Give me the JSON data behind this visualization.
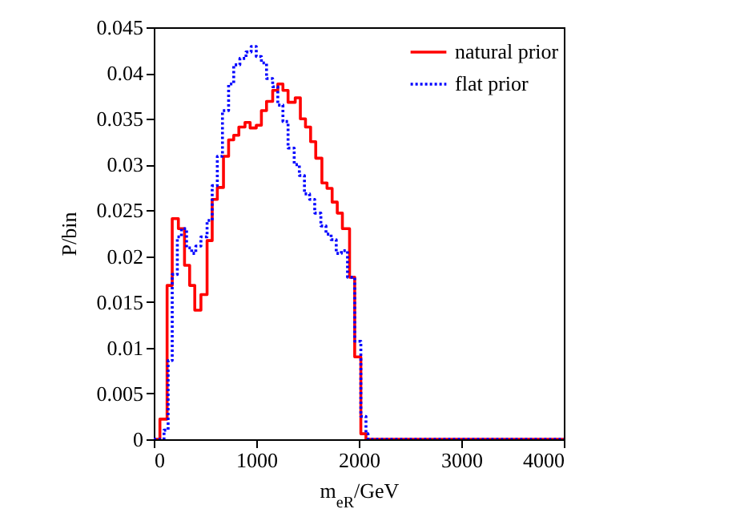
{
  "chart_data": {
    "type": "step",
    "xlabel": "m$_{eR}$/GeV",
    "ylabel": "P/bin",
    "xlim": [
      0,
      4000
    ],
    "xticks": [
      0,
      1000,
      2000,
      3000,
      4000
    ],
    "ylim": [
      0,
      0.045
    ],
    "yticks": [
      0,
      0.005,
      0.01,
      0.015,
      0.02,
      0.025,
      0.03,
      0.035,
      0.04,
      0.045
    ],
    "grid": false,
    "legend": "top right",
    "series": [
      {
        "name": "natural prior",
        "color": "#ff0000",
        "line_style": "solid",
        "x": [
          0,
          60,
          130,
          180,
          240,
          300,
          350,
          400,
          460,
          520,
          570,
          620,
          680,
          730,
          780,
          830,
          890,
          940,
          1000,
          1050,
          1100,
          1160,
          1210,
          1260,
          1310,
          1380,
          1430,
          1480,
          1530,
          1580,
          1640,
          1690,
          1740,
          1790,
          1840,
          1910,
          1960,
          2020,
          2070,
          4000
        ],
        "values": [
          0,
          0.0022,
          0.0168,
          0.0241,
          0.023,
          0.019,
          0.0168,
          0.0141,
          0.0158,
          0.0217,
          0.0262,
          0.0275,
          0.0309,
          0.0327,
          0.0332,
          0.0341,
          0.0346,
          0.034,
          0.0343,
          0.0359,
          0.0369,
          0.0381,
          0.0388,
          0.0381,
          0.0368,
          0.0373,
          0.035,
          0.0341,
          0.0325,
          0.0307,
          0.028,
          0.0274,
          0.0259,
          0.0247,
          0.023,
          0.0177,
          0.009,
          0.0006,
          0,
          0
        ]
      },
      {
        "name": "flat prior",
        "color": "#0000ff",
        "line_style": "dotted",
        "x": [
          0,
          100,
          140,
          180,
          230,
          270,
          320,
          370,
          410,
          460,
          520,
          570,
          620,
          670,
          730,
          780,
          840,
          900,
          950,
          1000,
          1050,
          1100,
          1160,
          1210,
          1260,
          1310,
          1370,
          1420,
          1470,
          1520,
          1570,
          1630,
          1680,
          1730,
          1780,
          1830,
          1890,
          1960,
          2020,
          2070,
          2090,
          4000
        ],
        "values": [
          0,
          0.001,
          0.0086,
          0.018,
          0.0221,
          0.023,
          0.0209,
          0.0203,
          0.0211,
          0.0221,
          0.0239,
          0.0277,
          0.0309,
          0.0359,
          0.0388,
          0.0409,
          0.0416,
          0.0423,
          0.0429,
          0.0418,
          0.0411,
          0.0394,
          0.0385,
          0.0365,
          0.0347,
          0.0318,
          0.03,
          0.0288,
          0.0268,
          0.0262,
          0.0247,
          0.0233,
          0.0224,
          0.0218,
          0.0203,
          0.0206,
          0.0177,
          0.0107,
          0.0025,
          0.0006,
          0,
          0
        ]
      }
    ]
  }
}
